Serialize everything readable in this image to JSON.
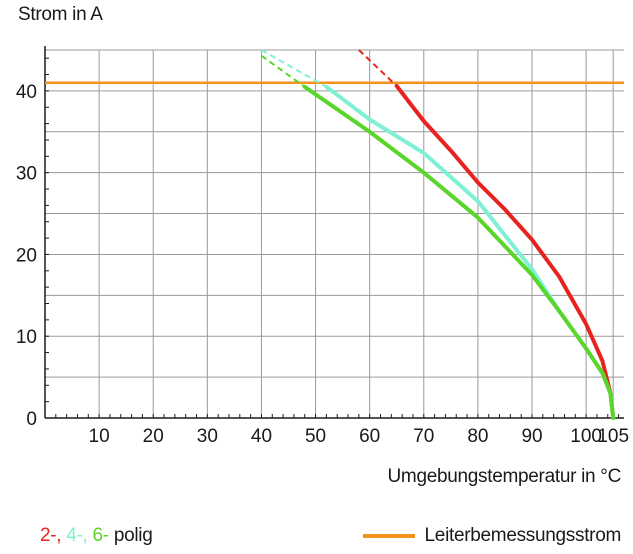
{
  "chart_data": {
    "type": "line",
    "ylabel": "Strom in A",
    "xlabel": "Umgebungstemperatur in °C",
    "xlim": [
      0,
      107
    ],
    "ylim": [
      0,
      45
    ],
    "x_ticks": [
      10,
      20,
      30,
      40,
      50,
      60,
      70,
      80,
      90,
      100,
      105
    ],
    "y_ticks": [
      0,
      10,
      20,
      30,
      40
    ],
    "grid": true,
    "series": [
      {
        "name": "2-",
        "color": "#e8231f",
        "dashed": [
          [
            58,
            45
          ],
          [
            65,
            40.6
          ]
        ],
        "solid": [
          [
            65,
            40.6
          ],
          [
            70,
            36.3
          ],
          [
            75,
            32.7
          ],
          [
            80,
            28.8
          ],
          [
            85,
            25.5
          ],
          [
            90,
            21.8
          ],
          [
            95,
            17.3
          ],
          [
            100,
            11.5
          ],
          [
            103,
            7
          ],
          [
            104.5,
            3
          ],
          [
            105,
            0
          ]
        ]
      },
      {
        "name": "4-",
        "color": "#7ff0d4",
        "dashed": [
          [
            40,
            45
          ],
          [
            52,
            40.5
          ]
        ],
        "solid": [
          [
            52,
            40.5
          ],
          [
            60,
            36.5
          ],
          [
            70,
            32.4
          ],
          [
            80,
            26.5
          ],
          [
            90,
            18.2
          ],
          [
            95,
            13.1
          ],
          [
            100,
            8.5
          ],
          [
            103,
            5.5
          ],
          [
            104.5,
            3
          ],
          [
            105,
            0
          ]
        ]
      },
      {
        "name": "6-",
        "color": "#5ad62a",
        "dashed": [
          [
            40,
            44.3
          ],
          [
            48,
            40.5
          ]
        ],
        "solid": [
          [
            48,
            40.5
          ],
          [
            60,
            35
          ],
          [
            70,
            30
          ],
          [
            80,
            24.5
          ],
          [
            90,
            17.5
          ],
          [
            95,
            13.1
          ],
          [
            100,
            8.5
          ],
          [
            103,
            5.5
          ],
          [
            104.5,
            3
          ],
          [
            105,
            0
          ]
        ]
      }
    ],
    "reference_line": {
      "name": "Leiterbemessungsstrom",
      "y": 41,
      "color": "#f5921e"
    }
  },
  "legend": {
    "series_names": [
      "2-,",
      "4-,",
      "6-"
    ],
    "suffix": "polig",
    "reference_label": "Leiterbemessungsstrom"
  }
}
